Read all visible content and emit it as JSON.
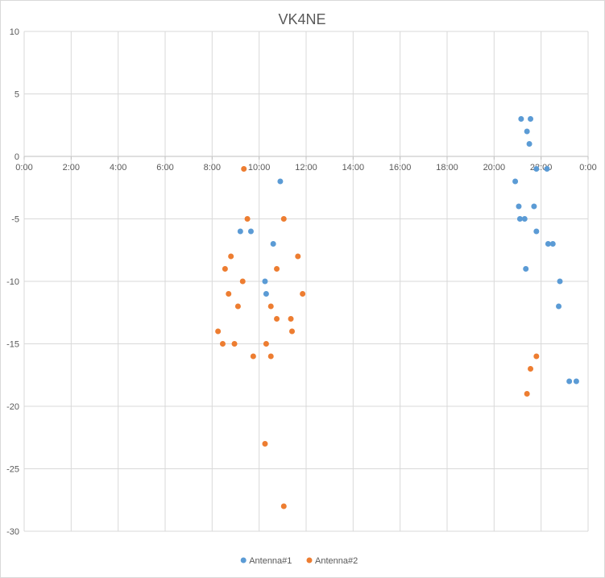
{
  "chart_data": {
    "type": "scatter",
    "title": "VK4NE",
    "xlabel": "",
    "ylabel": "",
    "x_unit": "time of day (hours)",
    "xlim": [
      0,
      24
    ],
    "ylim": [
      -30,
      10
    ],
    "x_ticks": [
      0,
      2,
      4,
      6,
      8,
      10,
      12,
      14,
      16,
      18,
      20,
      22,
      24
    ],
    "x_tick_labels": [
      "0:00",
      "2:00",
      "4:00",
      "6:00",
      "8:00",
      "10:00",
      "12:00",
      "14:00",
      "16:00",
      "18:00",
      "20:00",
      "22:00",
      "0:00"
    ],
    "y_ticks": [
      10,
      5,
      0,
      -5,
      -10,
      -15,
      -20,
      -25,
      -30
    ],
    "y_tick_labels": [
      "10",
      "5",
      "0",
      "-5",
      "-10",
      "-15",
      "-20",
      "-25",
      "-30"
    ],
    "grid": true,
    "legend_position": "bottom",
    "series": [
      {
        "name": "Antenna#1",
        "color": "#5b9bd5",
        "points": [
          [
            10.9,
            -2
          ],
          [
            9.2,
            -6
          ],
          [
            9.65,
            -6
          ],
          [
            10.6,
            -7
          ],
          [
            10.25,
            -10
          ],
          [
            10.3,
            -11
          ],
          [
            21.15,
            3
          ],
          [
            21.55,
            3
          ],
          [
            21.4,
            2
          ],
          [
            21.5,
            1
          ],
          [
            21.8,
            -1
          ],
          [
            22.25,
            -1
          ],
          [
            20.9,
            -2
          ],
          [
            21.05,
            -4
          ],
          [
            21.7,
            -4
          ],
          [
            21.1,
            -5
          ],
          [
            21.3,
            -5
          ],
          [
            21.8,
            -6
          ],
          [
            22.3,
            -7
          ],
          [
            22.5,
            -7
          ],
          [
            21.35,
            -9
          ],
          [
            22.8,
            -10
          ],
          [
            22.75,
            -12
          ],
          [
            23.2,
            -18
          ],
          [
            23.5,
            -18
          ]
        ]
      },
      {
        "name": "Antenna#2",
        "color": "#ed7d31",
        "points": [
          [
            9.35,
            -1
          ],
          [
            9.5,
            -5
          ],
          [
            11.05,
            -5
          ],
          [
            8.8,
            -8
          ],
          [
            11.65,
            -8
          ],
          [
            8.55,
            -9
          ],
          [
            10.75,
            -9
          ],
          [
            9.3,
            -10
          ],
          [
            8.7,
            -11
          ],
          [
            11.85,
            -11
          ],
          [
            9.1,
            -12
          ],
          [
            10.5,
            -12
          ],
          [
            10.75,
            -13
          ],
          [
            11.35,
            -13
          ],
          [
            8.25,
            -14
          ],
          [
            11.4,
            -14
          ],
          [
            8.45,
            -15
          ],
          [
            8.95,
            -15
          ],
          [
            10.3,
            -15
          ],
          [
            9.75,
            -16
          ],
          [
            10.5,
            -16
          ],
          [
            10.25,
            -23
          ],
          [
            11.05,
            -28
          ],
          [
            21.8,
            -16
          ],
          [
            21.55,
            -17
          ],
          [
            21.4,
            -19
          ]
        ]
      }
    ]
  }
}
